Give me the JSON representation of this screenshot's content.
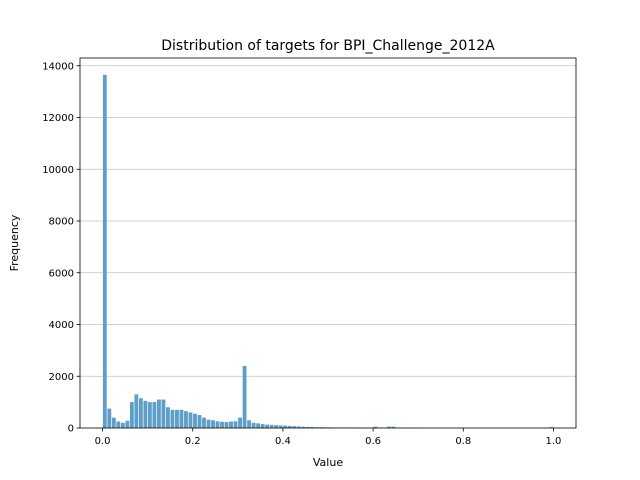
{
  "chart_data": {
    "type": "bar",
    "title": "Distribution of targets for BPI_Challenge_2012A",
    "xlabel": "Value",
    "ylabel": "Frequency",
    "xlim": [
      -0.05,
      1.05
    ],
    "ylim": [
      0,
      14300
    ],
    "x_ticks": [
      0.0,
      0.2,
      0.4,
      0.6,
      0.8,
      1.0
    ],
    "x_tick_labels": [
      "0.0",
      "0.2",
      "0.4",
      "0.6",
      "0.8",
      "1.0"
    ],
    "y_ticks": [
      0,
      2000,
      4000,
      6000,
      8000,
      10000,
      12000,
      14000
    ],
    "y_tick_labels": [
      "0",
      "2000",
      "4000",
      "6000",
      "8000",
      "10000",
      "12000",
      "14000"
    ],
    "grid": "y",
    "bar_color": "#5e9ec8",
    "bins": 100,
    "bin_width": 0.01,
    "x": [
      0.005,
      0.015,
      0.025,
      0.035,
      0.045,
      0.055,
      0.065,
      0.075,
      0.085,
      0.095,
      0.105,
      0.115,
      0.125,
      0.135,
      0.145,
      0.155,
      0.165,
      0.175,
      0.185,
      0.195,
      0.205,
      0.215,
      0.225,
      0.235,
      0.245,
      0.255,
      0.265,
      0.275,
      0.285,
      0.295,
      0.305,
      0.315,
      0.325,
      0.335,
      0.345,
      0.355,
      0.365,
      0.375,
      0.385,
      0.395,
      0.405,
      0.415,
      0.425,
      0.435,
      0.445,
      0.455,
      0.465,
      0.475,
      0.485,
      0.495,
      0.505,
      0.515,
      0.525,
      0.535,
      0.545,
      0.555,
      0.565,
      0.575,
      0.585,
      0.595,
      0.605,
      0.615,
      0.625,
      0.635,
      0.645,
      0.655,
      0.665,
      0.675,
      0.685,
      0.695,
      0.705,
      0.715,
      0.725,
      0.735,
      0.745,
      0.755,
      0.765,
      0.775,
      0.785,
      0.795,
      0.805,
      0.815,
      0.825,
      0.835,
      0.845,
      0.855,
      0.865,
      0.875,
      0.885,
      0.895,
      0.905,
      0.915,
      0.925,
      0.935,
      0.945,
      0.955,
      0.965,
      0.975,
      0.985,
      0.995
    ],
    "values": [
      13650,
      750,
      400,
      250,
      200,
      280,
      1000,
      1300,
      1150,
      1050,
      1000,
      1000,
      1100,
      1100,
      800,
      700,
      700,
      700,
      650,
      600,
      550,
      500,
      400,
      320,
      300,
      260,
      240,
      230,
      250,
      260,
      400,
      2400,
      300,
      200,
      180,
      150,
      130,
      120,
      110,
      100,
      90,
      80,
      70,
      60,
      50,
      40,
      40,
      30,
      30,
      25,
      25,
      20,
      20,
      20,
      20,
      20,
      15,
      15,
      15,
      15,
      50,
      15,
      15,
      50,
      50,
      15,
      10,
      10,
      10,
      10,
      10,
      5,
      5,
      5,
      5,
      5,
      5,
      5,
      5,
      5,
      5,
      5,
      5,
      5,
      5,
      5,
      5,
      5,
      5,
      5,
      5,
      5,
      5,
      5,
      5,
      5,
      5,
      5,
      5,
      30
    ]
  }
}
